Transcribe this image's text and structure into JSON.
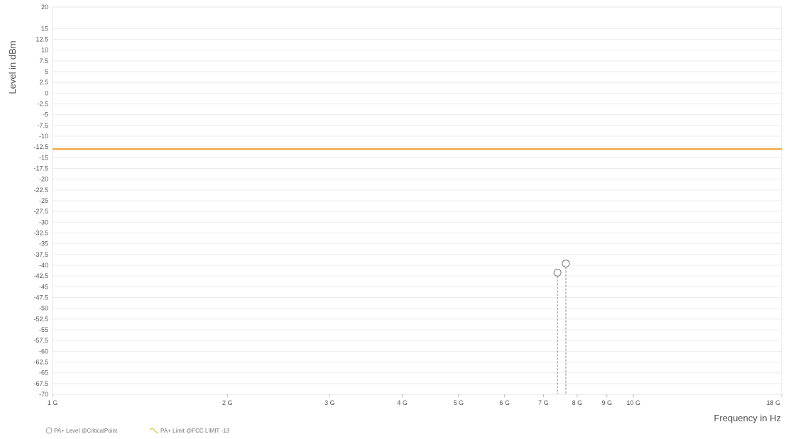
{
  "chart_data": {
    "type": "scatter",
    "xscale": "log",
    "xlabel": "Frequency in Hz",
    "ylabel": "Level in dBm",
    "xlim": [
      1000000000,
      18000000000
    ],
    "ylim": [
      -70,
      20
    ],
    "grid": true,
    "x_ticks": [
      {
        "value": 1000000000,
        "label": "1 G"
      },
      {
        "value": 2000000000,
        "label": "2 G"
      },
      {
        "value": 3000000000,
        "label": "3 G"
      },
      {
        "value": 4000000000,
        "label": "4 G"
      },
      {
        "value": 5000000000,
        "label": "5 G"
      },
      {
        "value": 6000000000,
        "label": "6 G"
      },
      {
        "value": 7000000000,
        "label": "7 G"
      },
      {
        "value": 8000000000,
        "label": "8 G"
      },
      {
        "value": 9000000000,
        "label": "9 G"
      },
      {
        "value": 10000000000,
        "label": "10 G"
      },
      {
        "value": 18000000000,
        "label": "18 G"
      }
    ],
    "y_ticks": [
      20,
      15,
      12.5,
      10,
      7.5,
      5,
      2.5,
      0,
      -2.5,
      -5,
      -7.5,
      -10,
      -12.5,
      -15,
      -17.5,
      -20,
      -22.5,
      -25,
      -27.5,
      -30,
      -32.5,
      -35,
      -37.5,
      -40,
      -42.5,
      -45,
      -47.5,
      -50,
      -52.5,
      -55,
      -57.5,
      -60,
      -62.5,
      -65,
      -67.5,
      -70
    ],
    "series": [
      {
        "name": "PA+ Level @CriticalPoint",
        "kind": "critical_points",
        "color": "#888888",
        "points": [
          {
            "x": 7400000000,
            "y": -41.7
          },
          {
            "x": 7650000000,
            "y": -39.6
          }
        ]
      },
      {
        "name": "PA+ Limit @FCC LIMIT -13",
        "kind": "limit_line",
        "color": "#f0a030",
        "y": -13
      }
    ],
    "legend": {
      "position": "bottom-left",
      "items": [
        "PA+ Level @CriticalPoint",
        "PA+ Limit @FCC LIMIT -13"
      ]
    }
  }
}
